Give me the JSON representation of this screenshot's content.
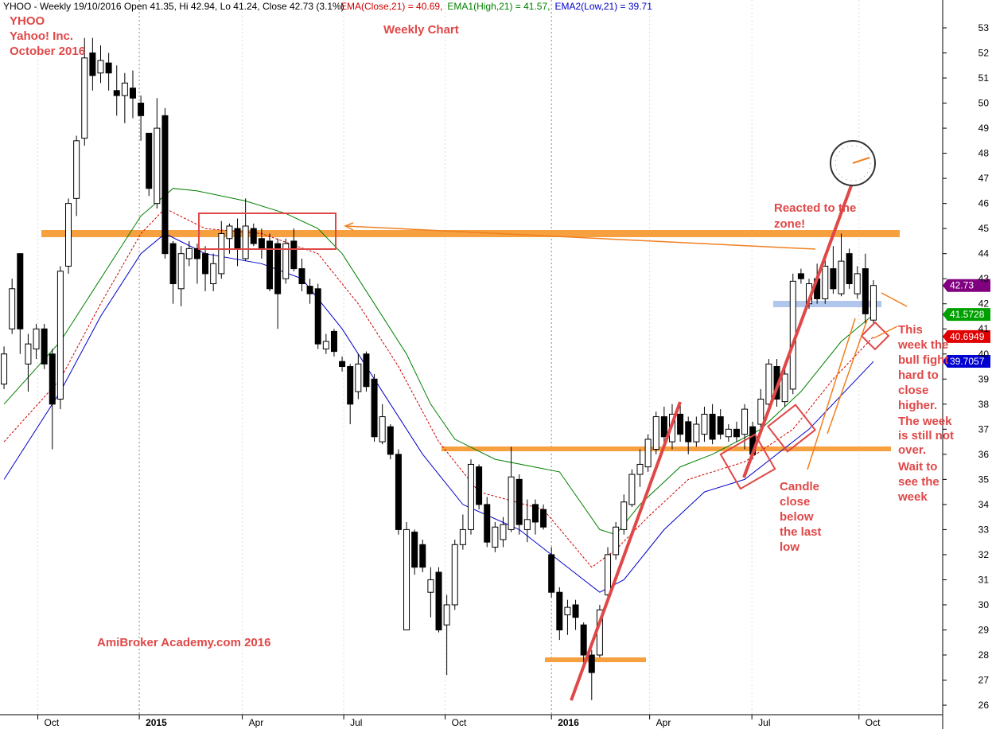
{
  "chart_data": {
    "type": "candlestick",
    "header": "YHOO - Weekly 19/10/2016 Open 41.35, Hi 42.94, Lo 41.24, Close 42.73 (3.1%)",
    "indicators": [
      {
        "label": "EMA(Close,21) = 40.69,",
        "color": "#d00000",
        "dash": true,
        "x": [
          0,
          7,
          12,
          17,
          20,
          25,
          32,
          39,
          44,
          49,
          54,
          59,
          67,
          73,
          76,
          80,
          85,
          92,
          98,
          103,
          108
        ],
        "values": [
          36.5,
          39,
          42,
          44.8,
          45.8,
          45,
          44.8,
          44,
          42,
          39.5,
          36.5,
          34.5,
          33.8,
          31.5,
          32.2,
          33.5,
          35,
          35.7,
          37,
          39,
          40.69
        ]
      },
      {
        "label": "EMA1(High,21) = 41.57,",
        "color": "#008000",
        "dash": false,
        "x": [
          0,
          7,
          12,
          17,
          21,
          24,
          30,
          35,
          39,
          42,
          46,
          50,
          53,
          56,
          61,
          69,
          74,
          76,
          79,
          84,
          88,
          94,
          99,
          104,
          108
        ],
        "values": [
          38,
          40.5,
          43,
          45.5,
          46.6,
          46.5,
          46.1,
          45.6,
          45,
          44,
          42,
          40,
          38,
          36.6,
          35.8,
          35.3,
          33,
          32.8,
          34,
          35.5,
          36,
          37,
          38.5,
          40.5,
          41.57
        ]
      },
      {
        "label": "EMA2(Low,21) = 39.71",
        "color": "#0000c8",
        "dash": false,
        "x": [
          0,
          7,
          12,
          17,
          20,
          25,
          32,
          37,
          42,
          48,
          52,
          57,
          64,
          72,
          74,
          77,
          82,
          87,
          92,
          100,
          108
        ],
        "values": [
          35,
          38.5,
          41.5,
          44,
          44.8,
          44,
          43.6,
          43,
          41,
          38,
          36,
          34,
          33,
          31,
          30.5,
          31,
          33,
          34.5,
          35,
          37,
          39.7
        ]
      }
    ],
    "candles": [
      [
        38.8,
        40.3,
        38.6,
        40
      ],
      [
        41,
        43,
        40.8,
        42.6
      ],
      [
        44,
        44,
        40,
        41
      ],
      [
        39.6,
        40.8,
        38.5,
        40.4
      ],
      [
        40.2,
        41.2,
        39.8,
        41
      ],
      [
        41,
        41.2,
        39.4,
        39.6
      ],
      [
        40,
        40.2,
        36.2,
        38
      ],
      [
        38.2,
        43.5,
        37.8,
        43.3
      ],
      [
        43.5,
        46.2,
        43.2,
        46
      ],
      [
        46.2,
        48.7,
        45.5,
        48.5
      ],
      [
        48.6,
        52.6,
        48.3,
        51.8
      ],
      [
        52,
        52.6,
        50.5,
        51.1
      ],
      [
        51.2,
        52.3,
        50.8,
        51.7
      ],
      [
        51.6,
        52,
        50.5,
        51.2
      ],
      [
        50.5,
        51.5,
        49.5,
        50.3
      ],
      [
        50.3,
        51.2,
        49.2,
        50.8
      ],
      [
        50.6,
        51.3,
        49.4,
        50.2
      ],
      [
        50,
        50.3,
        48.5,
        49.5
      ],
      [
        48.8,
        48.8,
        46.3,
        46.6
      ],
      [
        46,
        50.2,
        45.8,
        49
      ],
      [
        49.5,
        49.8,
        43.8,
        44
      ],
      [
        44.4,
        44.5,
        42,
        42.8
      ],
      [
        42.6,
        44.3,
        41.9,
        44
      ],
      [
        43.8,
        44.5,
        43.5,
        44.2
      ],
      [
        44.2,
        44.4,
        42.8,
        43.8
      ],
      [
        44,
        44.3,
        42.5,
        43.2
      ],
      [
        42.8,
        44,
        42.5,
        43.6
      ],
      [
        43.2,
        45.3,
        43,
        44.8
      ],
      [
        44.6,
        45.2,
        44,
        45.1
      ],
      [
        45,
        45.4,
        43.5,
        44.2
      ],
      [
        43.8,
        46.2,
        43.7,
        45.1
      ],
      [
        45,
        45.2,
        44.3,
        44.4
      ],
      [
        44.6,
        45,
        43.8,
        44.2
      ],
      [
        44.5,
        44.8,
        42.5,
        42.6
      ],
      [
        44.4,
        44.6,
        41,
        42.4
      ],
      [
        43,
        44.6,
        42.8,
        44.4
      ],
      [
        44.5,
        45,
        43.3,
        43.4
      ],
      [
        43.4,
        43.8,
        42.5,
        42.8
      ],
      [
        42.7,
        43,
        42,
        42.4
      ],
      [
        42.6,
        42.8,
        40.2,
        40.4
      ],
      [
        40.2,
        40.8,
        40,
        40.5
      ],
      [
        40.9,
        41,
        39.9,
        40.1
      ],
      [
        39.7,
        39.9,
        39.3,
        39.5
      ],
      [
        39.5,
        39.6,
        37.2,
        38
      ],
      [
        38.5,
        40,
        38.2,
        39.6
      ],
      [
        40,
        40.1,
        38.5,
        38.7
      ],
      [
        39,
        39.2,
        36.5,
        36.7
      ],
      [
        36.5,
        38,
        36.4,
        37.5
      ],
      [
        37.1,
        37.2,
        35.8,
        36
      ],
      [
        36,
        36.2,
        32.8,
        33
      ],
      [
        29,
        33.3,
        29,
        33
      ],
      [
        32.9,
        33,
        31.2,
        31.5
      ],
      [
        32.4,
        32.6,
        31.3,
        31.5
      ],
      [
        30.5,
        31.5,
        29.5,
        31
      ],
      [
        31.3,
        31.5,
        28.9,
        29
      ],
      [
        29.2,
        30.4,
        27.2,
        30
      ],
      [
        30,
        32.6,
        29.8,
        32.4
      ],
      [
        32.4,
        33.6,
        32.2,
        33
      ],
      [
        33,
        35.8,
        32.8,
        35.6
      ],
      [
        35.5,
        35.6,
        33.8,
        34
      ],
      [
        34,
        34.3,
        32.3,
        32.5
      ],
      [
        32.3,
        33.3,
        32.1,
        33.1
      ],
      [
        32.6,
        33.5,
        32.3,
        33.2
      ],
      [
        33,
        36.3,
        32.9,
        35.1
      ],
      [
        35,
        35.2,
        32.8,
        33.2
      ],
      [
        33,
        34.2,
        32.5,
        33.4
      ],
      [
        34,
        34.2,
        32.8,
        33.3
      ],
      [
        33.8,
        34,
        33,
        33.1
      ],
      [
        32,
        32.3,
        30.3,
        30.5
      ],
      [
        30.5,
        30.7,
        28.6,
        29
      ],
      [
        29.6,
        30.2,
        28.8,
        29.9
      ],
      [
        30,
        30.2,
        29,
        29.5
      ],
      [
        29.2,
        29.3,
        27.5,
        28
      ],
      [
        28,
        28.2,
        26.2,
        27.3
      ],
      [
        28,
        30,
        27.9,
        29.8
      ],
      [
        30.4,
        32.3,
        30.2,
        32
      ],
      [
        32,
        33.3,
        31.8,
        33.1
      ],
      [
        33,
        34.4,
        32.8,
        34.1
      ],
      [
        34,
        35.4,
        33.9,
        35.2
      ],
      [
        35.2,
        36.2,
        34.7,
        35.6
      ],
      [
        35.5,
        36.8,
        35.3,
        36.6
      ],
      [
        36.2,
        37.7,
        36,
        37.5
      ],
      [
        37.5,
        37.9,
        36.4,
        36.7
      ],
      [
        36.5,
        38,
        36.2,
        37.6
      ],
      [
        37.6,
        38,
        36.5,
        36.8
      ],
      [
        37.3,
        37.5,
        36,
        36.5
      ],
      [
        36.5,
        37.5,
        36.3,
        37.2
      ],
      [
        36.8,
        37.9,
        36.5,
        37.6
      ],
      [
        37.6,
        38,
        36.4,
        36.6
      ],
      [
        37.5,
        37.8,
        36.6,
        36.8
      ],
      [
        36.7,
        37.2,
        36.5,
        37
      ],
      [
        37,
        37.3,
        36.5,
        36.7
      ],
      [
        36.8,
        38,
        36.2,
        37.8
      ],
      [
        37.1,
        37.3,
        35.8,
        36
      ],
      [
        37.2,
        38.6,
        37,
        38.2
      ],
      [
        38,
        39.8,
        37.9,
        39.6
      ],
      [
        39.5,
        39.8,
        37.9,
        38.2
      ],
      [
        38.1,
        39.4,
        37.9,
        39.2
      ],
      [
        38.6,
        43.2,
        38.4,
        42.9
      ],
      [
        43.2,
        43.4,
        42.8,
        43
      ],
      [
        42,
        43,
        41.8,
        42.8
      ],
      [
        43,
        43.6,
        42,
        42.2
      ],
      [
        42.2,
        43.8,
        42,
        43.5
      ],
      [
        43.4,
        44.3,
        42.4,
        42.6
      ],
      [
        42.4,
        44.8,
        42.3,
        43.7
      ],
      [
        44,
        44.2,
        42.6,
        42.8
      ],
      [
        42.4,
        43.5,
        42.2,
        43.2
      ],
      [
        43.4,
        44,
        41.2,
        41.6
      ],
      [
        41.35,
        42.94,
        41.24,
        42.73
      ]
    ],
    "xlim": [
      -0.5,
      116.6
    ],
    "xticks": [
      {
        "value": 4.2,
        "label": "Oct"
      },
      {
        "value": 16.8,
        "label": "2015"
      },
      {
        "value": 29.6,
        "label": "Apr"
      },
      {
        "value": 42.2,
        "label": "Jul"
      },
      {
        "value": 54.8,
        "label": "Oct"
      },
      {
        "value": 68,
        "label": "2016"
      },
      {
        "value": 80.2,
        "label": "Apr"
      },
      {
        "value": 92.9,
        "label": "Jul"
      },
      {
        "value": 106.2,
        "label": "Oct"
      }
    ],
    "ylim": [
      25.05,
      54.11
    ],
    "yticks": [
      26,
      27,
      28,
      29,
      30,
      31,
      32,
      33,
      34,
      35,
      36,
      37,
      38,
      39,
      40,
      41,
      42,
      43,
      44,
      45,
      46,
      47,
      48,
      49,
      50,
      51,
      52,
      53
    ],
    "price_labels": [
      {
        "value": 42.73,
        "color": "#800080"
      },
      {
        "value": 41.5728,
        "color": "#00a000"
      },
      {
        "value": 40.6949,
        "color": "#e00000"
      },
      {
        "value": 39.7057,
        "color": "#0000d0"
      }
    ],
    "annotations": {
      "ticker": "YHOO",
      "company": "Yahoo! Inc.",
      "date": "October 2016",
      "chart_name": "Weekly Chart",
      "credit": "AmiBroker Academy.com  2016",
      "reacted": [
        "Reacted to the",
        "zone!"
      ],
      "candle_note": [
        "Candle",
        "close",
        "below",
        "the last",
        "low"
      ],
      "week_note": [
        "This",
        "week the",
        "bull fight",
        "hard to",
        "close",
        "higher."
      ],
      "not_over": [
        "The week",
        "is still not",
        "over."
      ],
      "wait": [
        "Wait to",
        "see the",
        "week"
      ]
    }
  }
}
